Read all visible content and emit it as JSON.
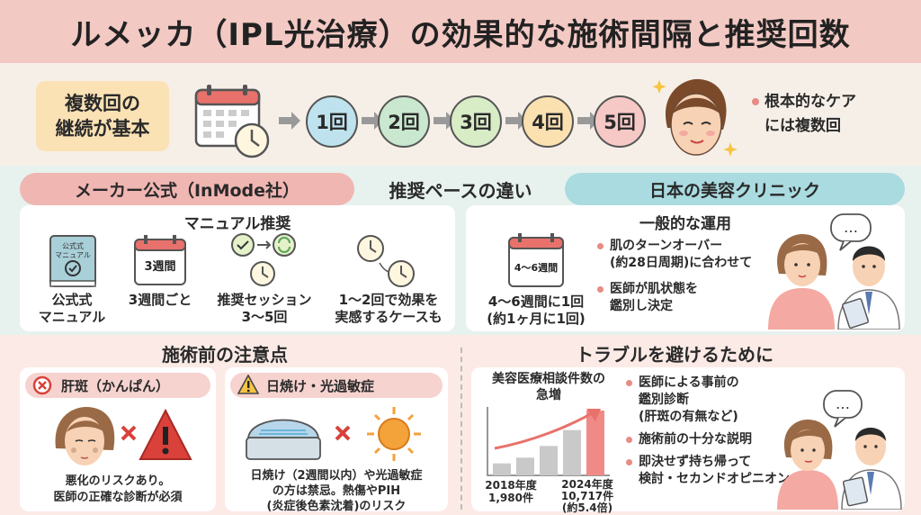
{
  "title": "ルメッカ（IPL光治療）の効果的な施術間隔と推奨回数",
  "top": {
    "basic_line1": "複数回の",
    "basic_line2": "継続が基本",
    "steps": [
      "1回",
      "2回",
      "3回",
      "4回",
      "5回"
    ],
    "step_colors": [
      "#bfe3ee",
      "#c9e8cf",
      "#d8ecc6",
      "#fbe0b0",
      "#f6c9c6"
    ],
    "note_line1": "根本的なケア",
    "note_line2": "には複数回"
  },
  "compare": {
    "maker_label": "メーカー公式（InMode社）",
    "center_label": "推奨ペースの違い",
    "clinic_label": "日本の美容クリニック",
    "manual_title": "マニュアル推奨",
    "manual_book_text1": "公式式",
    "manual_book_text2": "マニュアル",
    "items": [
      {
        "line1": "公式式",
        "line2": "マニュアル"
      },
      {
        "line1": "3週間ごと",
        "line2": ""
      },
      {
        "line1": "推奨セッション",
        "line2": "3〜5回"
      },
      {
        "line1": "1〜2回で効果を",
        "line2": "実感するケースも"
      }
    ],
    "cal_small_label": "3週間",
    "clinic_title": "一般的な運用",
    "clinic_cal_label": "4〜6週間",
    "clinic_interval_line1": "4〜6週間に1回",
    "clinic_interval_line2": "(約1ヶ月に1回)",
    "clinic_bullets": [
      {
        "line1": "肌のターンオーバー",
        "line2": "(約28日周期)に合わせて"
      },
      {
        "line1": "医師が肌状態を",
        "line2": "鑑別し決定"
      }
    ],
    "speech": "…"
  },
  "caution": {
    "title": "施術前の注意点",
    "card1_head": "肝斑（かんぱん）",
    "card1_line1": "悪化のリスクあり。",
    "card1_line2": "医師の正確な診断が必須",
    "card2_head": "日焼け・光過敏症",
    "card2_line1": "日焼け（2週間以内）や光過敏症",
    "card2_line2": "の方は禁忌。熱傷やPIH",
    "card2_line3": "(炎症後色素沈着)のリスク"
  },
  "trouble": {
    "title": "トラブルを避けるために",
    "chart_title_line1": "美容医療相談件数の",
    "chart_title_line2": "急増",
    "label_2018_line1": "2018年度",
    "label_2018_line2": "1,980件",
    "label_2024_line1": "2024年度",
    "label_2024_line2": "10,717件",
    "label_2024_line3": "(約5.4倍)",
    "bullets": [
      {
        "line1": "医師による事前の",
        "line2": "鑑別診断",
        "line3": "(肝斑の有無など)"
      },
      {
        "line1": "施術前の十分な説明",
        "line2": "",
        "line3": ""
      },
      {
        "line1": "即決せず持ち帰って",
        "line2": "検討・セカンドオピニオン",
        "line3": ""
      }
    ]
  },
  "chart_data": {
    "type": "bar",
    "categories": [
      "2018年度",
      "2024年度"
    ],
    "values": [
      1980,
      10717
    ],
    "title": "美容医療相談件数の急増"
  }
}
